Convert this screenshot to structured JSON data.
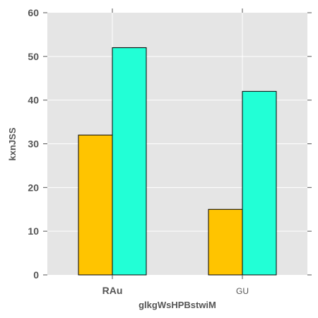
{
  "chart_data": {
    "type": "bar",
    "title": "",
    "xlabel": "glkgWsHPBstwiM",
    "ylabel": "kxnJSS",
    "categories": [
      "RAu",
      "GU"
    ],
    "series": [
      {
        "values": [
          32,
          15
        ],
        "color": "#FFC400"
      },
      {
        "values": [
          52,
          42
        ],
        "color": "#22FFD6"
      }
    ],
    "ylim": [
      0,
      60
    ],
    "yticks": [
      0,
      10,
      20,
      30,
      40,
      50,
      60
    ],
    "grid": true,
    "background": "#E5E5E5",
    "grid_color": "#FFFFFF",
    "legend": "none"
  }
}
